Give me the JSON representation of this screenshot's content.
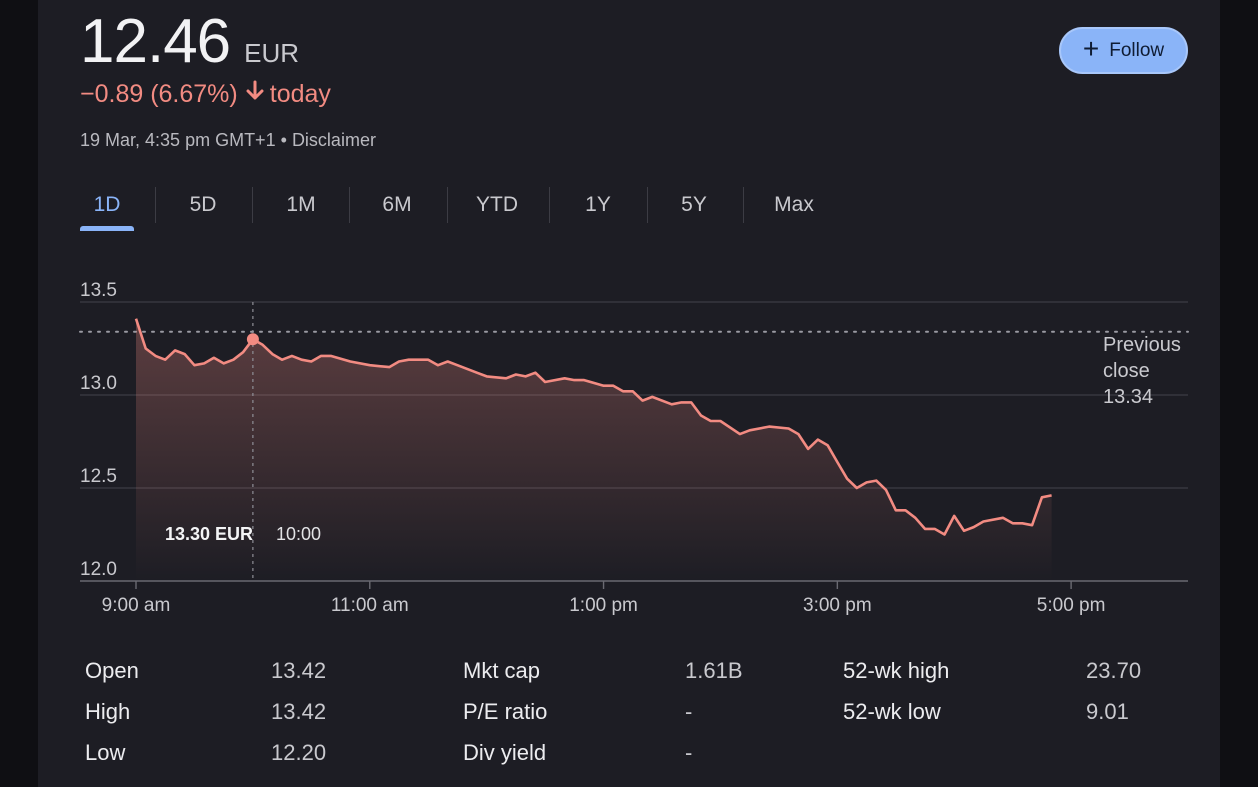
{
  "quote": {
    "price": "12.46",
    "currency": "EUR",
    "change": "−0.89 (6.67%)",
    "change_suffix": "today",
    "timestamp": "19 Mar, 4:35 pm GMT+1",
    "separator": "•",
    "disclaimer": "Disclaimer"
  },
  "follow_button": {
    "label": "Follow",
    "icon": "plus-icon"
  },
  "tabs": [
    {
      "label": "1D",
      "active": true
    },
    {
      "label": "5D"
    },
    {
      "label": "1M"
    },
    {
      "label": "6M"
    },
    {
      "label": "YTD"
    },
    {
      "label": "1Y"
    },
    {
      "label": "5Y"
    },
    {
      "label": "Max"
    }
  ],
  "colors": {
    "accent": "#8ab4f8",
    "negative": "#f28b82",
    "background": "#1d1d24"
  },
  "chart_data": {
    "type": "line",
    "y_ticks": [
      "13.5",
      "13.0",
      "12.5",
      "12.0"
    ],
    "ylim": [
      12.0,
      13.5
    ],
    "x_ticks": [
      "9:00 am",
      "11:00 am",
      "1:00 pm",
      "3:00 pm",
      "5:00 pm"
    ],
    "xlim": [
      "9:00",
      "18:00"
    ],
    "previous_close": {
      "label": [
        "Previous",
        "close"
      ],
      "value": "13.34",
      "y": 13.34
    },
    "hover": {
      "x": "10:00",
      "y": 13.3,
      "label_value": "13.30 EUR",
      "label_time": "10:00"
    },
    "series": [
      {
        "values": [
          [
            "9:00",
            13.41
          ],
          [
            "9:05",
            13.25
          ],
          [
            "9:10",
            13.21
          ],
          [
            "9:15",
            13.19
          ],
          [
            "9:20",
            13.24
          ],
          [
            "9:25",
            13.22
          ],
          [
            "9:30",
            13.16
          ],
          [
            "9:35",
            13.17
          ],
          [
            "9:40",
            13.2
          ],
          [
            "9:45",
            13.17
          ],
          [
            "9:50",
            13.19
          ],
          [
            "9:55",
            13.23
          ],
          [
            "10:00",
            13.3
          ],
          [
            "10:05",
            13.27
          ],
          [
            "10:10",
            13.22
          ],
          [
            "10:15",
            13.19
          ],
          [
            "10:20",
            13.21
          ],
          [
            "10:25",
            13.19
          ],
          [
            "10:30",
            13.18
          ],
          [
            "10:35",
            13.21
          ],
          [
            "10:40",
            13.21
          ],
          [
            "10:50",
            13.18
          ],
          [
            "11:00",
            13.16
          ],
          [
            "11:10",
            13.15
          ],
          [
            "11:15",
            13.18
          ],
          [
            "11:20",
            13.19
          ],
          [
            "11:30",
            13.19
          ],
          [
            "11:35",
            13.16
          ],
          [
            "11:40",
            13.18
          ],
          [
            "11:45",
            13.16
          ],
          [
            "11:55",
            13.12
          ],
          [
            "12:00",
            13.1
          ],
          [
            "12:10",
            13.09
          ],
          [
            "12:15",
            13.11
          ],
          [
            "12:20",
            13.1
          ],
          [
            "12:25",
            13.12
          ],
          [
            "12:30",
            13.07
          ],
          [
            "12:40",
            13.09
          ],
          [
            "12:45",
            13.08
          ],
          [
            "12:50",
            13.08
          ],
          [
            "13:00",
            13.05
          ],
          [
            "13:05",
            13.05
          ],
          [
            "13:10",
            13.02
          ],
          [
            "13:15",
            13.02
          ],
          [
            "13:20",
            12.97
          ],
          [
            "13:25",
            12.99
          ],
          [
            "13:35",
            12.95
          ],
          [
            "13:40",
            12.96
          ],
          [
            "13:45",
            12.96
          ],
          [
            "13:50",
            12.89
          ],
          [
            "13:55",
            12.86
          ],
          [
            "14:00",
            12.86
          ],
          [
            "14:10",
            12.79
          ],
          [
            "14:15",
            12.81
          ],
          [
            "14:25",
            12.83
          ],
          [
            "14:35",
            12.82
          ],
          [
            "14:40",
            12.79
          ],
          [
            "14:45",
            12.71
          ],
          [
            "14:50",
            12.76
          ],
          [
            "14:55",
            12.73
          ],
          [
            "15:00",
            12.64
          ],
          [
            "15:05",
            12.55
          ],
          [
            "15:10",
            12.5
          ],
          [
            "15:15",
            12.53
          ],
          [
            "15:20",
            12.54
          ],
          [
            "15:25",
            12.49
          ],
          [
            "15:30",
            12.38
          ],
          [
            "15:35",
            12.38
          ],
          [
            "15:40",
            12.34
          ],
          [
            "15:45",
            12.28
          ],
          [
            "15:50",
            12.28
          ],
          [
            "15:55",
            12.25
          ],
          [
            "16:00",
            12.35
          ],
          [
            "16:05",
            12.27
          ],
          [
            "16:10",
            12.29
          ],
          [
            "16:15",
            12.32
          ],
          [
            "16:25",
            12.34
          ],
          [
            "16:30",
            12.31
          ],
          [
            "16:35",
            12.31
          ],
          [
            "16:40",
            12.3
          ],
          [
            "16:45",
            12.45
          ],
          [
            "16:50",
            12.46
          ]
        ]
      }
    ]
  },
  "stats": [
    [
      {
        "label": "Open",
        "value": "13.42"
      },
      {
        "label": "High",
        "value": "13.42"
      },
      {
        "label": "Low",
        "value": "12.20"
      }
    ],
    [
      {
        "label": "Mkt cap",
        "value": "1.61B"
      },
      {
        "label": "P/E ratio",
        "value": "-"
      },
      {
        "label": "Div yield",
        "value": "-"
      }
    ],
    [
      {
        "label": "52-wk high",
        "value": "23.70"
      },
      {
        "label": "52-wk low",
        "value": "9.01"
      }
    ]
  ]
}
